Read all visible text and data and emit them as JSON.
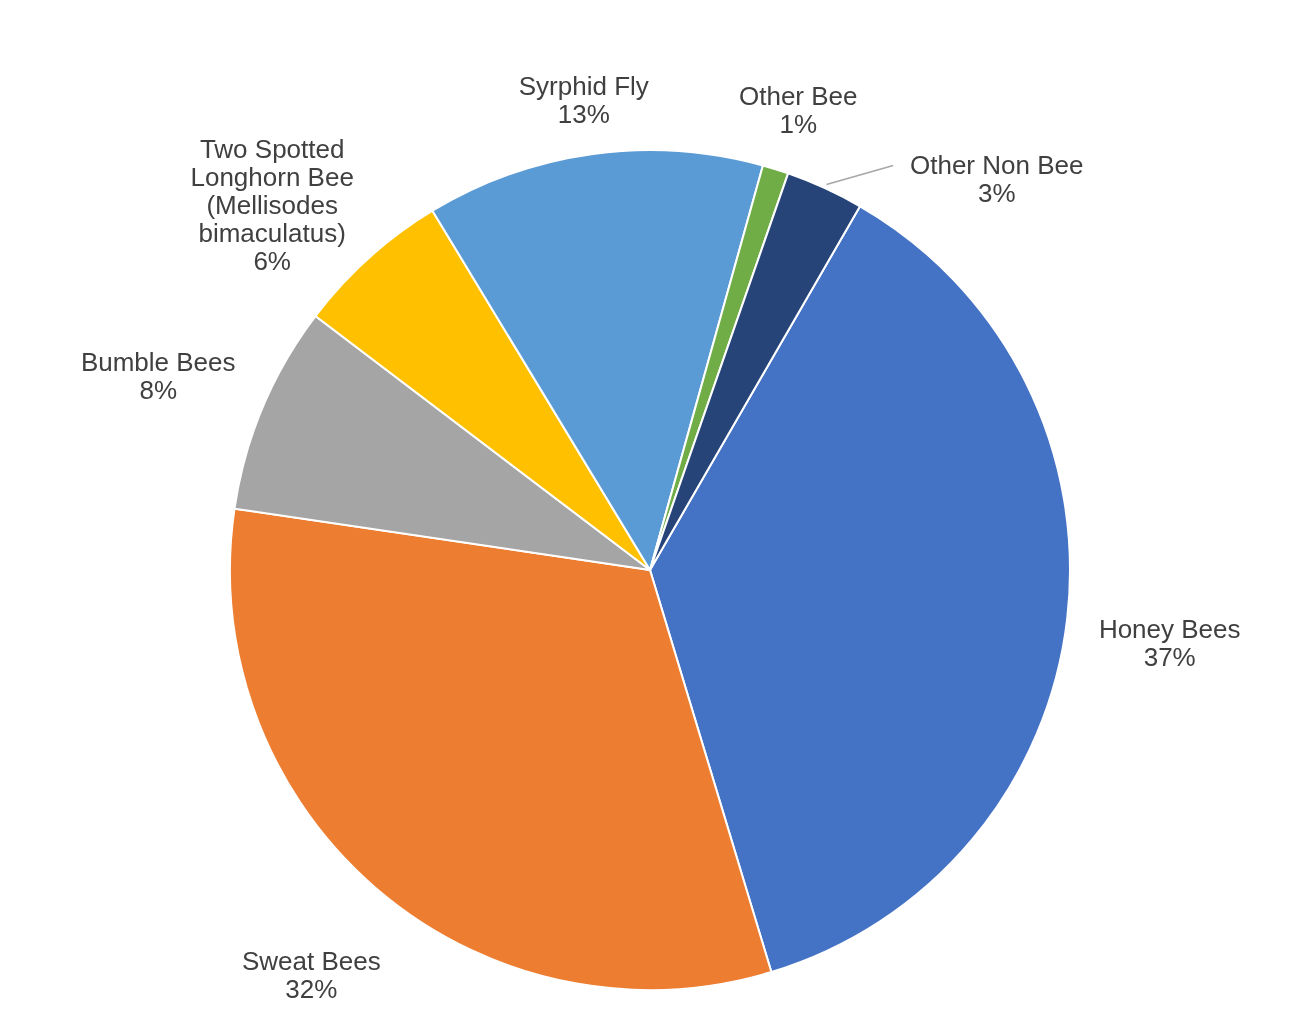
{
  "chart_data": {
    "type": "pie",
    "categories": [
      "Honey Bees",
      "Sweat Bees",
      "Bumble Bees",
      "Two Spotted Longhorn Bee (Mellisodes bimaculatus)",
      "Syrphid Fly",
      "Other Bee",
      "Other Non Bee"
    ],
    "values": [
      37,
      32,
      8,
      6,
      13,
      1,
      3
    ],
    "colors": [
      "#4472c4",
      "#ed7d31",
      "#a5a5a5",
      "#ffc000",
      "#5b9bd5",
      "#70ad47",
      "#264478"
    ],
    "value_labels": [
      "37%",
      "32%",
      "8%",
      "6%",
      "13%",
      "1%",
      "3%"
    ]
  }
}
